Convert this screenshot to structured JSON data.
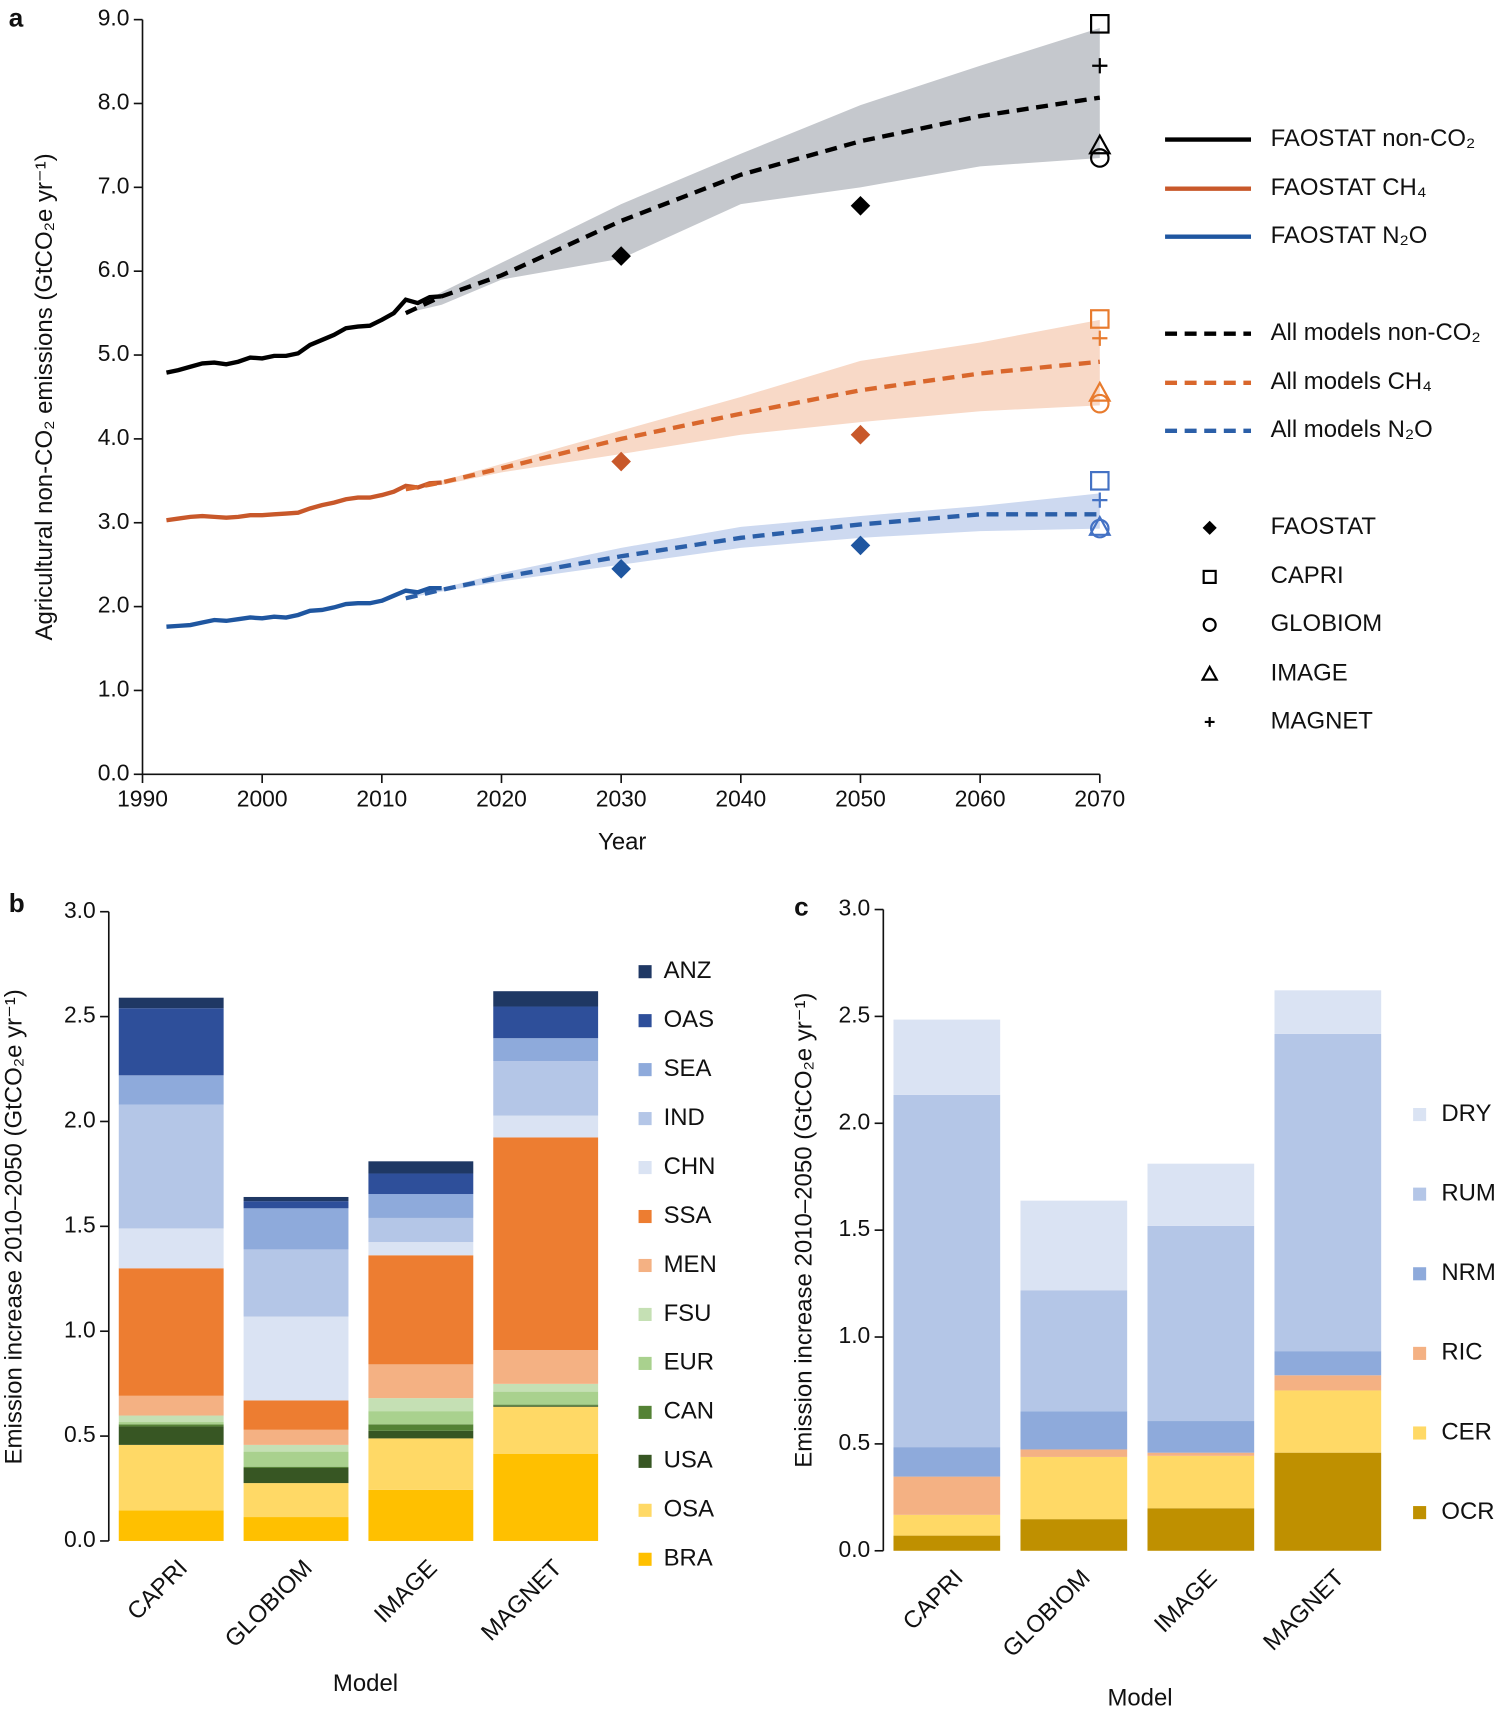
{
  "chart_data": [
    {
      "type": "line",
      "panel": "a",
      "x_label": "Year",
      "y_label": "Agricultural non-CO₂ emissions (GtCO₂e yr⁻¹)",
      "xlim": [
        1990,
        2070
      ],
      "xticks": [
        1990,
        2000,
        2010,
        2020,
        2030,
        2040,
        2050,
        2060,
        2070
      ],
      "ylim": [
        0,
        9
      ],
      "yticks": [
        {
          "value": 0,
          "label": "0.0"
        },
        {
          "value": 1,
          "label": "1.0"
        },
        {
          "value": 2,
          "label": "2.0"
        },
        {
          "value": 3,
          "label": "3.0"
        },
        {
          "value": 4,
          "label": "4.0"
        },
        {
          "value": 5,
          "label": "5.0"
        },
        {
          "value": 6,
          "label": "6.0"
        },
        {
          "value": 7,
          "label": "7.0"
        },
        {
          "value": 8,
          "label": "8.0"
        },
        {
          "value": 9,
          "label": "9.0"
        }
      ],
      "series": [
        {
          "name": "FAOSTAT non-CO₂",
          "color": "#000000",
          "dash": false,
          "x": [
            1992,
            1993,
            1994,
            1995,
            1996,
            1997,
            1998,
            1999,
            2000,
            2001,
            2002,
            2003,
            2004,
            2005,
            2006,
            2007,
            2008,
            2009,
            2010,
            2011,
            2012,
            2013,
            2014,
            2015
          ],
          "values": [
            4.79,
            4.82,
            4.86,
            4.9,
            4.91,
            4.89,
            4.92,
            4.97,
            4.96,
            4.99,
            4.99,
            5.02,
            5.12,
            5.18,
            5.24,
            5.32,
            5.34,
            5.35,
            5.42,
            5.5,
            5.66,
            5.62,
            5.69,
            5.7
          ]
        },
        {
          "name": "FAOSTAT CH₄",
          "color": "#c8582a",
          "dash": false,
          "x": [
            1992,
            1993,
            1994,
            1995,
            1996,
            1997,
            1998,
            1999,
            2000,
            2001,
            2002,
            2003,
            2004,
            2005,
            2006,
            2007,
            2008,
            2009,
            2010,
            2011,
            2012,
            2013,
            2014,
            2015
          ],
          "values": [
            3.03,
            3.05,
            3.07,
            3.08,
            3.07,
            3.06,
            3.07,
            3.09,
            3.09,
            3.1,
            3.11,
            3.12,
            3.17,
            3.21,
            3.24,
            3.28,
            3.3,
            3.3,
            3.33,
            3.37,
            3.44,
            3.42,
            3.47,
            3.48
          ]
        },
        {
          "name": "FAOSTAT N₂O",
          "color": "#1f56a0",
          "dash": false,
          "x": [
            1992,
            1993,
            1994,
            1995,
            1996,
            1997,
            1998,
            1999,
            2000,
            2001,
            2002,
            2003,
            2004,
            2005,
            2006,
            2007,
            2008,
            2009,
            2010,
            2011,
            2012,
            2013,
            2014,
            2015
          ],
          "values": [
            1.76,
            1.77,
            1.78,
            1.81,
            1.84,
            1.83,
            1.85,
            1.87,
            1.86,
            1.88,
            1.87,
            1.9,
            1.95,
            1.96,
            1.99,
            2.03,
            2.04,
            2.04,
            2.07,
            2.13,
            2.19,
            2.17,
            2.22,
            2.22
          ]
        },
        {
          "name": "All models non-CO₂",
          "color": "#000000",
          "dash": true,
          "band_color": "#c5c8cd",
          "x": [
            2012,
            2015,
            2020,
            2030,
            2040,
            2050,
            2060,
            2070
          ],
          "values": [
            5.5,
            5.7,
            5.95,
            6.6,
            7.15,
            7.55,
            7.85,
            8.07
          ],
          "band_lower": [
            5.5,
            5.6,
            5.9,
            6.15,
            6.8,
            7.0,
            7.25,
            7.35
          ],
          "band_upper": [
            5.5,
            5.75,
            6.1,
            6.8,
            7.4,
            7.98,
            8.45,
            8.9
          ]
        },
        {
          "name": "All models CH₄",
          "color": "#d9672c",
          "dash": true,
          "band_color": "#f8d9c7",
          "x": [
            2012,
            2015,
            2020,
            2030,
            2040,
            2050,
            2060,
            2070
          ],
          "values": [
            3.4,
            3.48,
            3.65,
            4.0,
            4.3,
            4.58,
            4.78,
            4.92
          ],
          "band_lower": [
            3.4,
            3.45,
            3.6,
            3.82,
            4.05,
            4.2,
            4.33,
            4.4
          ],
          "band_upper": [
            3.4,
            3.5,
            3.7,
            4.1,
            4.5,
            4.93,
            5.15,
            5.42
          ]
        },
        {
          "name": "All models N₂O",
          "color": "#2b5fa8",
          "dash": true,
          "band_color": "#cdd9f0",
          "x": [
            2012,
            2015,
            2020,
            2030,
            2040,
            2050,
            2060,
            2070
          ],
          "values": [
            2.1,
            2.2,
            2.35,
            2.6,
            2.82,
            2.98,
            3.1,
            3.1
          ],
          "band_lower": [
            2.1,
            2.18,
            2.3,
            2.5,
            2.7,
            2.82,
            2.9,
            2.93
          ],
          "band_upper": [
            2.1,
            2.22,
            2.4,
            2.7,
            2.95,
            3.08,
            3.2,
            3.35
          ]
        }
      ],
      "markers": [
        {
          "name": "FAOSTAT",
          "symbol": "diamond",
          "x": [
            2030,
            2030,
            2030,
            2050,
            2050,
            2050
          ],
          "values": [
            6.18,
            3.73,
            2.45,
            6.78,
            4.05,
            2.73
          ],
          "colors": [
            "#000000",
            "#c8582a",
            "#1f56a0",
            "#000000",
            "#c8582a",
            "#1f56a0"
          ]
        },
        {
          "name": "CAPRI",
          "symbol": "square",
          "x": [
            2070,
            2070,
            2070
          ],
          "values": [
            8.95,
            5.43,
            3.5
          ],
          "colors": [
            "#000000",
            "#e87b2e",
            "#4472c4"
          ]
        },
        {
          "name": "GLOBIOM",
          "symbol": "circle",
          "x": [
            2070,
            2070,
            2070
          ],
          "values": [
            7.35,
            4.42,
            2.93
          ],
          "colors": [
            "#000000",
            "#e87b2e",
            "#4472c4"
          ]
        },
        {
          "name": "IMAGE",
          "symbol": "triangle",
          "x": [
            2070,
            2070,
            2070
          ],
          "values": [
            7.5,
            4.55,
            2.95
          ],
          "colors": [
            "#000000",
            "#e87b2e",
            "#4472c4"
          ]
        },
        {
          "name": "MAGNET",
          "symbol": "plus",
          "x": [
            2070,
            2070,
            2070
          ],
          "values": [
            8.45,
            5.2,
            3.27
          ],
          "colors": [
            "#000000",
            "#e87b2e",
            "#4472c4"
          ]
        }
      ]
    },
    {
      "type": "bar",
      "stacked": true,
      "panel": "b",
      "x_label": "Model",
      "y_label": "Emission increase 2010–2050 (GtCO₂e yr⁻¹)",
      "categories": [
        "CAPRI",
        "GLOBIOM",
        "IMAGE",
        "MAGNET"
      ],
      "ylim": [
        0,
        3
      ],
      "yticks": [
        {
          "value": 0,
          "label": "0.0"
        },
        0.5,
        {
          "value": 1,
          "label": "1.0"
        },
        1.5,
        {
          "value": 2,
          "label": "2.0"
        },
        2.5,
        {
          "value": 3,
          "label": "3.0"
        }
      ],
      "series": [
        {
          "name": "BRA",
          "color": "#ffc000",
          "values": [
            0.146,
            0.114,
            0.244,
            0.416
          ]
        },
        {
          "name": "OSA",
          "color": "#ffd966",
          "values": [
            0.312,
            0.162,
            0.245,
            0.224
          ]
        },
        {
          "name": "USA",
          "color": "#375623",
          "values": [
            0.088,
            0.072,
            0.036,
            0.005
          ]
        },
        {
          "name": "CAN",
          "color": "#548235",
          "values": [
            0.01,
            0.006,
            0.031,
            0.005
          ]
        },
        {
          "name": "EUR",
          "color": "#a9d18e",
          "values": [
            0.011,
            0.072,
            0.063,
            0.062
          ]
        },
        {
          "name": "FSU",
          "color": "#c5e0b4",
          "values": [
            0.031,
            0.032,
            0.062,
            0.037
          ]
        },
        {
          "name": "MEN",
          "color": "#f4b183",
          "values": [
            0.094,
            0.072,
            0.161,
            0.161
          ]
        },
        {
          "name": "SSA",
          "color": "#ed7d31",
          "values": [
            0.608,
            0.14,
            0.52,
            1.014
          ]
        },
        {
          "name": "CHN",
          "color": "#dae3f3",
          "values": [
            0.19,
            0.4,
            0.063,
            0.104
          ]
        },
        {
          "name": "IND",
          "color": "#b4c6e7",
          "values": [
            0.59,
            0.32,
            0.115,
            0.26
          ]
        },
        {
          "name": "SEA",
          "color": "#8eaadb",
          "values": [
            0.14,
            0.196,
            0.114,
            0.109
          ]
        },
        {
          "name": "OAS",
          "color": "#2e4f9a",
          "values": [
            0.32,
            0.034,
            0.098,
            0.151
          ]
        },
        {
          "name": "ANZ",
          "color": "#1f3864",
          "values": [
            0.05,
            0.02,
            0.058,
            0.073
          ]
        }
      ]
    },
    {
      "type": "bar",
      "stacked": true,
      "panel": "c",
      "x_label": "Model",
      "y_label": "Emission increase 2010–2050 (GtCO₂e yr⁻¹)",
      "categories": [
        "CAPRI",
        "GLOBIOM",
        "IMAGE",
        "MAGNET"
      ],
      "ylim": [
        0,
        3
      ],
      "yticks": [
        {
          "value": 0,
          "label": "0.0"
        },
        0.5,
        {
          "value": 1,
          "label": "1.0"
        },
        1.5,
        {
          "value": 2,
          "label": "2.0"
        },
        2.5,
        {
          "value": 3,
          "label": "3.0"
        }
      ],
      "series": [
        {
          "name": "OCR",
          "color": "#bf9000",
          "values": [
            0.071,
            0.148,
            0.199,
            0.459
          ]
        },
        {
          "name": "CER",
          "color": "#ffd966",
          "values": [
            0.097,
            0.291,
            0.245,
            0.291
          ]
        },
        {
          "name": "RIC",
          "color": "#f4b183",
          "values": [
            0.179,
            0.035,
            0.015,
            0.071
          ]
        },
        {
          "name": "NRM",
          "color": "#8eaadb",
          "values": [
            0.138,
            0.179,
            0.148,
            0.113
          ]
        },
        {
          "name": "RUM",
          "color": "#b4c6e7",
          "values": [
            1.648,
            0.566,
            0.913,
            1.484
          ]
        },
        {
          "name": "DRY",
          "color": "#dae3f3",
          "values": [
            0.352,
            0.419,
            0.291,
            0.204
          ]
        }
      ]
    }
  ]
}
